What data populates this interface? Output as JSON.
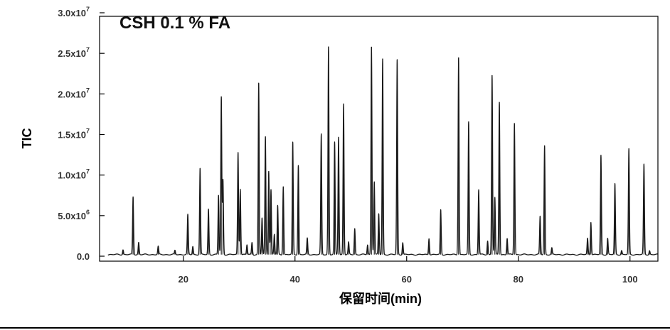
{
  "chart_data": {
    "type": "line",
    "title": "CSH 0.1 % FA",
    "xlabel": "保留时间(min)",
    "ylabel": "TIC",
    "xlim": [
      5,
      105
    ],
    "ylim": [
      0,
      30000000
    ],
    "x_ticks": [
      20,
      40,
      60,
      80,
      100
    ],
    "x_tick_labels": [
      "20",
      "40",
      "60",
      "80",
      "100"
    ],
    "y_ticks": [
      0,
      5000000,
      10000000,
      15000000,
      20000000,
      25000000,
      30000000
    ],
    "y_tick_labels": [
      {
        "mant": "0.0",
        "exp": ""
      },
      {
        "mant": "5.0x10",
        "exp": "6"
      },
      {
        "mant": "1.0x10",
        "exp": "7"
      },
      {
        "mant": "1.5x10",
        "exp": "7"
      },
      {
        "mant": "2.0x10",
        "exp": "7"
      },
      {
        "mant": "2.5x10",
        "exp": "7"
      },
      {
        "mant": "3.0x10",
        "exp": "7"
      }
    ],
    "baseline": 200000,
    "line_color": "#1a1a1a",
    "peaks": [
      {
        "rt": 9.2,
        "h": 600000
      },
      {
        "rt": 11.0,
        "h": 7100000
      },
      {
        "rt": 12.0,
        "h": 1500000
      },
      {
        "rt": 15.5,
        "h": 1000000
      },
      {
        "rt": 18.5,
        "h": 500000
      },
      {
        "rt": 20.8,
        "h": 4900000
      },
      {
        "rt": 21.7,
        "h": 1000000
      },
      {
        "rt": 23.0,
        "h": 10600000
      },
      {
        "rt": 24.5,
        "h": 5600000
      },
      {
        "rt": 26.3,
        "h": 7300000
      },
      {
        "rt": 26.8,
        "h": 19400000
      },
      {
        "rt": 27.1,
        "h": 9200000
      },
      {
        "rt": 29.8,
        "h": 12600000
      },
      {
        "rt": 30.2,
        "h": 8100000
      },
      {
        "rt": 31.4,
        "h": 1200000
      },
      {
        "rt": 32.3,
        "h": 1500000
      },
      {
        "rt": 33.5,
        "h": 21100000
      },
      {
        "rt": 34.1,
        "h": 4500000
      },
      {
        "rt": 34.7,
        "h": 14500000
      },
      {
        "rt": 35.3,
        "h": 10300000
      },
      {
        "rt": 35.7,
        "h": 8000000
      },
      {
        "rt": 36.3,
        "h": 2500000
      },
      {
        "rt": 36.9,
        "h": 6000000
      },
      {
        "rt": 37.9,
        "h": 8400000
      },
      {
        "rt": 39.6,
        "h": 13800000
      },
      {
        "rt": 40.6,
        "h": 11000000
      },
      {
        "rt": 42.2,
        "h": 2000000
      },
      {
        "rt": 44.7,
        "h": 14800000
      },
      {
        "rt": 46.0,
        "h": 25600000
      },
      {
        "rt": 47.1,
        "h": 13800000
      },
      {
        "rt": 47.8,
        "h": 14500000
      },
      {
        "rt": 48.7,
        "h": 18600000
      },
      {
        "rt": 49.6,
        "h": 1500000
      },
      {
        "rt": 50.7,
        "h": 3200000
      },
      {
        "rt": 53.0,
        "h": 1200000
      },
      {
        "rt": 53.7,
        "h": 25600000
      },
      {
        "rt": 54.2,
        "h": 9000000
      },
      {
        "rt": 55.0,
        "h": 5000000
      },
      {
        "rt": 55.7,
        "h": 24100000
      },
      {
        "rt": 58.3,
        "h": 24000000
      },
      {
        "rt": 59.3,
        "h": 1500000
      },
      {
        "rt": 64.0,
        "h": 2000000
      },
      {
        "rt": 66.1,
        "h": 5500000
      },
      {
        "rt": 69.3,
        "h": 24300000
      },
      {
        "rt": 71.1,
        "h": 16300000
      },
      {
        "rt": 72.9,
        "h": 8000000
      },
      {
        "rt": 74.5,
        "h": 1700000
      },
      {
        "rt": 75.3,
        "h": 22100000
      },
      {
        "rt": 75.8,
        "h": 7000000
      },
      {
        "rt": 76.6,
        "h": 18800000
      },
      {
        "rt": 78.0,
        "h": 2000000
      },
      {
        "rt": 79.3,
        "h": 16200000
      },
      {
        "rt": 83.9,
        "h": 4700000
      },
      {
        "rt": 84.7,
        "h": 13400000
      },
      {
        "rt": 86.0,
        "h": 800000
      },
      {
        "rt": 92.4,
        "h": 2000000
      },
      {
        "rt": 93.0,
        "h": 4000000
      },
      {
        "rt": 94.8,
        "h": 12200000
      },
      {
        "rt": 96.0,
        "h": 2000000
      },
      {
        "rt": 97.3,
        "h": 8700000
      },
      {
        "rt": 98.5,
        "h": 500000
      },
      {
        "rt": 99.8,
        "h": 13000000
      },
      {
        "rt": 102.5,
        "h": 11100000
      },
      {
        "rt": 103.5,
        "h": 500000
      }
    ]
  }
}
